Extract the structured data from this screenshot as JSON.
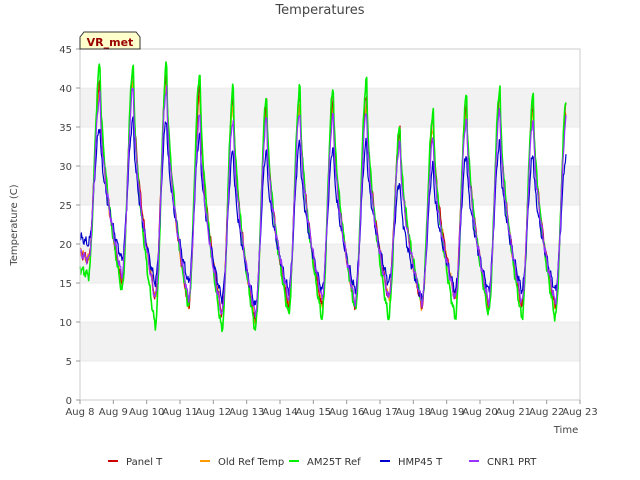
{
  "chart_data": {
    "type": "line",
    "title": "Temperatures",
    "xlabel": "Time",
    "ylabel": "Temperature (C)",
    "badge": "VR_met",
    "ylim": [
      0,
      45
    ],
    "xlim": [
      0,
      15
    ],
    "yticks": [
      0,
      5,
      10,
      15,
      20,
      25,
      30,
      35,
      40,
      45
    ],
    "xticks": [
      {
        "x": 0,
        "label": "Aug 8"
      },
      {
        "x": 1,
        "label": "Aug 9"
      },
      {
        "x": 2,
        "label": "Aug 10"
      },
      {
        "x": 3,
        "label": "Aug 11"
      },
      {
        "x": 4,
        "label": "Aug 12"
      },
      {
        "x": 5,
        "label": "Aug 13"
      },
      {
        "x": 6,
        "label": "Aug 14"
      },
      {
        "x": 7,
        "label": "Aug 15"
      },
      {
        "x": 8,
        "label": "Aug 16"
      },
      {
        "x": 9,
        "label": "Aug 17"
      },
      {
        "x": 10,
        "label": "Aug 18"
      },
      {
        "x": 11,
        "label": "Aug 19"
      },
      {
        "x": 12,
        "label": "Aug 20"
      },
      {
        "x": 13,
        "label": "Aug 21"
      },
      {
        "x": 14,
        "label": "Aug 22"
      },
      {
        "x": 15,
        "label": "Aug 23"
      }
    ],
    "x_unit": "days since Aug 8 00:00",
    "legend_position": "bottom",
    "grid": "horizontal bands",
    "series": [
      {
        "name": "Panel T",
        "color": "#cc0000",
        "mins": [
          18,
          15,
          13,
          12,
          11,
          10,
          12,
          12,
          12,
          13,
          12,
          13,
          12,
          12,
          12,
          15
        ],
        "maxs": [
          41,
          42,
          42,
          40,
          39,
          38,
          39,
          38.5,
          39,
          34.5,
          36,
          38,
          38.5,
          38
        ]
      },
      {
        "name": "Old Ref Temp",
        "color": "#ff9900",
        "mins": [
          18,
          15,
          13,
          12,
          11,
          10,
          12,
          12,
          12,
          13,
          12,
          13,
          12,
          12,
          12,
          15
        ],
        "maxs": [
          40,
          41,
          41,
          39,
          38,
          37,
          38,
          37.5,
          38,
          34,
          35,
          37,
          37.5,
          37
        ]
      },
      {
        "name": "AM25T Ref",
        "color": "#00ee00",
        "mins": [
          16,
          14,
          9.5,
          12,
          9,
          9,
          11,
          10.5,
          11.5,
          10.5,
          12.5,
          10.5,
          11,
          10.5,
          10.5,
          13
        ],
        "maxs": [
          43,
          43,
          43,
          42,
          40,
          39,
          40,
          40,
          41,
          35,
          37,
          39,
          40,
          39
        ]
      },
      {
        "name": "HMP45 T",
        "color": "#0000cc",
        "mins": [
          20,
          18,
          15,
          15,
          13,
          12,
          14,
          14,
          14,
          15,
          13,
          14,
          14,
          14,
          14,
          17
        ],
        "maxs": [
          35,
          36,
          36,
          34,
          32,
          32,
          33,
          32.5,
          33,
          28,
          30,
          31.5,
          33,
          31.5
        ]
      },
      {
        "name": "CNR1 PRT",
        "color": "#9933ff",
        "mins": [
          18,
          16,
          13,
          13,
          11,
          11,
          13,
          13,
          12.5,
          13,
          12.5,
          13,
          12.5,
          12.5,
          12.5,
          16
        ],
        "maxs": [
          39,
          40,
          40,
          36.5,
          36,
          36,
          37,
          36.5,
          37,
          33,
          33.5,
          36,
          37,
          36
        ]
      }
    ]
  }
}
